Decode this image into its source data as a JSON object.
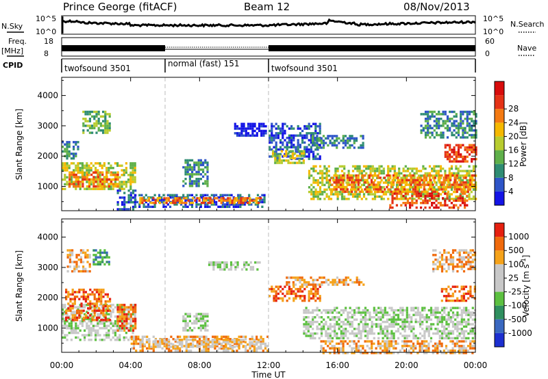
{
  "header": {
    "station": "Prince George (fitACF)",
    "beam": "Beam 12",
    "date": "08/Nov/2013"
  },
  "top_panels": {
    "nsky_label": "N.Sky",
    "nsky_ticks": [
      "10^5",
      "10^0"
    ],
    "nsearch_label": "N.Search",
    "nsearch_ticks": [
      "10^5",
      "10^0"
    ],
    "freq_label": "Freq.",
    "freq_unit": "[MHz]",
    "freq_ticks": [
      "18",
      "8"
    ],
    "nave_label": "Nave",
    "nave_ticks": [
      "60",
      "0"
    ],
    "cpid_label": "CPID",
    "cpid_segments": [
      {
        "label": "twofsound 3501",
        "start_h": 0,
        "end_h": 6
      },
      {
        "label": "normal (fast) 151",
        "start_h": 6,
        "end_h": 12
      },
      {
        "label": "twofsound 3501",
        "start_h": 12,
        "end_h": 24
      }
    ]
  },
  "chart_data": [
    {
      "type": "heatmap",
      "panel": "power",
      "ylabel": "Slant Range [km]",
      "xlim": [
        0,
        24
      ],
      "ylim": [
        200,
        4600
      ],
      "yticks": [
        1000,
        2000,
        3000,
        4000
      ],
      "colorbar_label": "Power [dB]",
      "colorbar_ticks": [
        "4",
        "8",
        "12",
        "16",
        "20",
        "24",
        "28"
      ],
      "colorbar_colors": [
        "#1414e6",
        "#2e55c8",
        "#2f8c73",
        "#5fb04a",
        "#b8cc2f",
        "#f5b800",
        "#f47a12",
        "#e53216",
        "#d80c0c"
      ],
      "regions": [
        {
          "t0": 0.0,
          "t1": 4.3,
          "r0": 900,
          "r1": 1800,
          "level": 4
        },
        {
          "t0": 0.4,
          "t1": 3.2,
          "r0": 1000,
          "r1": 1500,
          "level": 6
        },
        {
          "t0": 1.2,
          "t1": 2.8,
          "r0": 2800,
          "r1": 3500,
          "level": 3
        },
        {
          "t0": 0.0,
          "t1": 1.0,
          "r0": 1900,
          "r1": 2500,
          "level": 2
        },
        {
          "t0": 3.2,
          "t1": 4.3,
          "r0": 250,
          "r1": 900,
          "level": 1
        },
        {
          "t0": 4.2,
          "t1": 11.8,
          "r0": 300,
          "r1": 750,
          "level": 1
        },
        {
          "t0": 4.5,
          "t1": 11.5,
          "r0": 450,
          "r1": 650,
          "level": 6
        },
        {
          "t0": 7.0,
          "t1": 8.4,
          "r0": 1000,
          "r1": 1900,
          "level": 2
        },
        {
          "t0": 10.0,
          "t1": 11.8,
          "r0": 2700,
          "r1": 3100,
          "level": 0
        },
        {
          "t0": 12.0,
          "t1": 15.0,
          "r0": 1900,
          "r1": 3100,
          "level": 1
        },
        {
          "t0": 12.2,
          "t1": 14.0,
          "r0": 1800,
          "r1": 2200,
          "level": 4
        },
        {
          "t0": 14.5,
          "t1": 17.5,
          "r0": 2300,
          "r1": 2700,
          "level": 2
        },
        {
          "t0": 14.3,
          "t1": 24.0,
          "r0": 600,
          "r1": 1700,
          "level": 4
        },
        {
          "t0": 15.5,
          "t1": 24.0,
          "r0": 800,
          "r1": 1400,
          "level": 6
        },
        {
          "t0": 19.0,
          "t1": 23.5,
          "r0": 300,
          "r1": 800,
          "level": 7
        },
        {
          "t0": 20.8,
          "t1": 24.0,
          "r0": 2600,
          "r1": 3500,
          "level": 2
        },
        {
          "t0": 22.2,
          "t1": 24.0,
          "r0": 1800,
          "r1": 2400,
          "level": 7
        }
      ]
    },
    {
      "type": "heatmap",
      "panel": "velocity",
      "xlabel": "Time UT",
      "ylabel": "Slant Range [km]",
      "xlim": [
        0,
        24
      ],
      "ylim": [
        200,
        4600
      ],
      "xticks": [
        "00:00",
        "04:00",
        "08:00",
        "12:00",
        "16:00",
        "20:00",
        "00:00"
      ],
      "yticks": [
        1000,
        2000,
        3000,
        4000
      ],
      "colorbar_label": "Velocity [m s^-1]",
      "colorbar_ticks": [
        "1000",
        "500",
        "100",
        "25",
        "-25",
        "-100",
        "-500",
        "-1000"
      ],
      "colorbar_colors": [
        "#1c2fd0",
        "#3a68c0",
        "#2f8f5f",
        "#5cc040",
        "#c8c8c8",
        "#c8c8c8",
        "#f5a21a",
        "#f06a0c",
        "#e62010"
      ],
      "regions": [
        {
          "t0": 0.0,
          "t1": 4.3,
          "r0": 600,
          "r1": 1800,
          "level": 4
        },
        {
          "t0": 0.2,
          "t1": 2.8,
          "r0": 1300,
          "r1": 2300,
          "level": 7
        },
        {
          "t0": 3.2,
          "t1": 4.3,
          "r0": 900,
          "r1": 1800,
          "level": 7
        },
        {
          "t0": 0.3,
          "t1": 1.6,
          "r0": 2900,
          "r1": 3600,
          "level": 6
        },
        {
          "t0": 1.8,
          "t1": 2.8,
          "r0": 3100,
          "r1": 3600,
          "level": 2
        },
        {
          "t0": 4.0,
          "t1": 12.0,
          "r0": 250,
          "r1": 750,
          "level": 6
        },
        {
          "t0": 4.5,
          "t1": 11.5,
          "r0": 400,
          "r1": 650,
          "level": 5
        },
        {
          "t0": 7.0,
          "t1": 8.4,
          "r0": 900,
          "r1": 1500,
          "level": 4
        },
        {
          "t0": 8.5,
          "t1": 11.5,
          "r0": 2900,
          "r1": 3200,
          "level": 4
        },
        {
          "t0": 12.0,
          "t1": 15.0,
          "r0": 1900,
          "r1": 2400,
          "level": 7
        },
        {
          "t0": 13.0,
          "t1": 17.5,
          "r0": 2400,
          "r1": 2700,
          "level": 6
        },
        {
          "t0": 14.0,
          "t1": 24.0,
          "r0": 700,
          "r1": 1700,
          "level": 4
        },
        {
          "t0": 15.0,
          "t1": 24.0,
          "r0": 200,
          "r1": 600,
          "level": 6
        },
        {
          "t0": 22.0,
          "t1": 24.0,
          "r0": 1900,
          "r1": 2400,
          "level": 7
        },
        {
          "t0": 21.5,
          "t1": 24.0,
          "r0": 2900,
          "r1": 3600,
          "level": 6
        }
      ]
    }
  ]
}
